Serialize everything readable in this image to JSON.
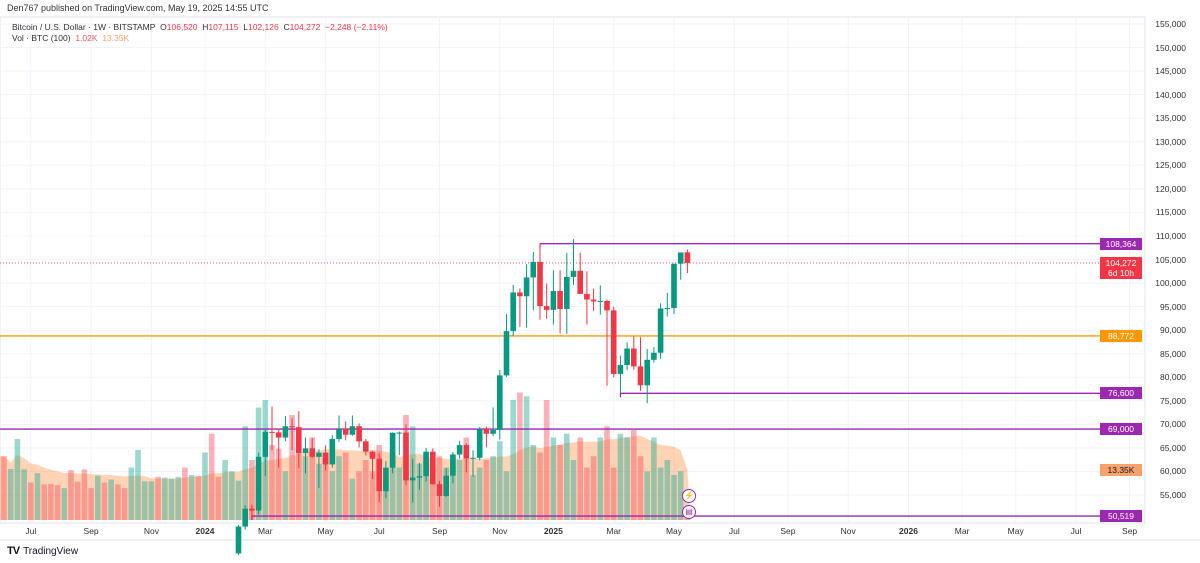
{
  "publisher_line": "Den767 published on TradingView.com, May 19, 2025 14:55 UTC",
  "legend": {
    "symbol": "Bitcoin / U.S. Dollar · 1W · BITSTAMP",
    "o_label": "O",
    "o": "106,520",
    "h_label": "H",
    "h": "107,115",
    "l_label": "L",
    "l": "102,126",
    "c_label": "C",
    "c": "104,272",
    "change": "−2,248 (−2.11%)",
    "vol_label": "Vol · BTC (100)",
    "vol": "1.02K",
    "vol_ma": "13.35K"
  },
  "price_axis": [
    "155,000",
    "150,000",
    "145,000",
    "140,000",
    "135,000",
    "130,000",
    "125,000",
    "120,000",
    "115,000",
    "110,000",
    "105,000",
    "100,000",
    "95,000",
    "90,000",
    "85,000",
    "80,000",
    "75,000",
    "70,000",
    "65,000",
    "60,000",
    "55,000"
  ],
  "badges": [
    {
      "text": "108,364",
      "price": 108364,
      "color": "#9c27b0",
      "from": "2024-12-16",
      "style": "solid"
    },
    {
      "text": "104,272",
      "sub": "6d 10h",
      "price": 104272,
      "color": "#f23645",
      "from": null,
      "style": "dotted"
    },
    {
      "text": "88,772",
      "price": 88772,
      "color": "#ff9800",
      "from": null,
      "style": "solid"
    },
    {
      "text": "76,600",
      "price": 76600,
      "color": "#9c27b0",
      "from": "2025-03-10",
      "style": "solid"
    },
    {
      "text": "69,000",
      "price": 69000,
      "color": "#9c27b0",
      "from": null,
      "style": "solid"
    },
    {
      "text": "50,519",
      "price": 50519,
      "color": "#9c27b0",
      "from": "2024-02-19",
      "style": "solid"
    }
  ],
  "volume_badge": {
    "text": "13.35K",
    "color": "#f7a26a"
  },
  "time_axis": [
    {
      "label": "Jul",
      "week": 4,
      "bold": false
    },
    {
      "label": "Sep",
      "week": 13,
      "bold": false
    },
    {
      "label": "Nov",
      "week": 22,
      "bold": false
    },
    {
      "label": "2024",
      "week": 30,
      "bold": true
    },
    {
      "label": "Mar",
      "week": 39,
      "bold": false
    },
    {
      "label": "May",
      "week": 48,
      "bold": false
    },
    {
      "label": "Jul",
      "week": 56,
      "bold": false
    },
    {
      "label": "Sep",
      "week": 65,
      "bold": false
    },
    {
      "label": "Nov",
      "week": 74,
      "bold": false
    },
    {
      "label": "2025",
      "week": 82,
      "bold": true
    },
    {
      "label": "Mar",
      "week": 91,
      "bold": false
    },
    {
      "label": "May",
      "week": 100,
      "bold": false
    },
    {
      "label": "Jul",
      "week": 109,
      "bold": false
    },
    {
      "label": "Sep",
      "week": 117,
      "bold": false
    },
    {
      "label": "Nov",
      "week": 126,
      "bold": false
    },
    {
      "label": "2026",
      "week": 135,
      "bold": true
    },
    {
      "label": "Mar",
      "week": 143,
      "bold": false
    },
    {
      "label": "May",
      "week": 151,
      "bold": false
    },
    {
      "label": "Jul",
      "week": 160,
      "bold": false
    },
    {
      "label": "Sep",
      "week": 168,
      "bold": false
    }
  ],
  "brand": "TradingView",
  "colors": {
    "up": "#089981",
    "down": "#f23645",
    "ma_area": "#ff9800",
    "level": "#9c27b0"
  },
  "chart_data": {
    "type": "candlestick",
    "interval": "1W",
    "ylim": [
      50000,
      157000
    ],
    "grid": true,
    "candles_start": "2024-02-05",
    "candles": [
      [
        42600,
        48600,
        42300,
        48300
      ],
      [
        48300,
        52800,
        47700,
        52100
      ],
      [
        52100,
        52900,
        50500,
        51700
      ],
      [
        51700,
        64000,
        50900,
        63100
      ],
      [
        63100,
        69100,
        59000,
        68400
      ],
      [
        68400,
        73800,
        64500,
        68300
      ],
      [
        68300,
        68900,
        60800,
        67200
      ],
      [
        67200,
        71800,
        66400,
        69600
      ],
      [
        69600,
        71300,
        64500,
        69400
      ],
      [
        69400,
        72800,
        60700,
        63900
      ],
      [
        63900,
        67200,
        59600,
        64900
      ],
      [
        64900,
        67100,
        62800,
        63100
      ],
      [
        63100,
        64700,
        56500,
        64000
      ],
      [
        64000,
        65500,
        60200,
        61500
      ],
      [
        61500,
        67700,
        60800,
        66900
      ],
      [
        66900,
        71900,
        66300,
        69000
      ],
      [
        69000,
        70600,
        66600,
        67800
      ],
      [
        67800,
        71900,
        67600,
        69600
      ],
      [
        69600,
        70200,
        65100,
        66400
      ],
      [
        66400,
        66900,
        63400,
        64200
      ],
      [
        64200,
        64400,
        58400,
        62700
      ],
      [
        62700,
        63800,
        53500,
        55800
      ],
      [
        55800,
        62200,
        54300,
        60800
      ],
      [
        60800,
        68300,
        59600,
        68200
      ],
      [
        68200,
        68500,
        63500,
        68250
      ],
      [
        68250,
        70000,
        57100,
        58100
      ],
      [
        58100,
        62700,
        53400,
        58700
      ],
      [
        58700,
        61800,
        56100,
        59000
      ],
      [
        59000,
        65000,
        57800,
        64200
      ],
      [
        64200,
        64900,
        57200,
        57300
      ],
      [
        57300,
        58000,
        52500,
        54800
      ],
      [
        54800,
        60700,
        54600,
        59100
      ],
      [
        59100,
        64100,
        57500,
        63600
      ],
      [
        63600,
        66500,
        62700,
        65600
      ],
      [
        65600,
        66000,
        59800,
        62800
      ],
      [
        62800,
        64500,
        58900,
        62900
      ],
      [
        62900,
        69400,
        62400,
        69000
      ],
      [
        69000,
        69500,
        65100,
        68000
      ],
      [
        68000,
        73600,
        67500,
        68800
      ],
      [
        68800,
        81500,
        66800,
        80400
      ],
      [
        80400,
        93400,
        80100,
        89800
      ],
      [
        89800,
        99600,
        88700,
        98000
      ],
      [
        98000,
        98900,
        90700,
        97200
      ],
      [
        97200,
        104000,
        90500,
        101200
      ],
      [
        101200,
        106600,
        94200,
        104500
      ],
      [
        104500,
        108364,
        92200,
        95100
      ],
      [
        95100,
        99900,
        92400,
        94300
      ],
      [
        94300,
        102700,
        91200,
        98300
      ],
      [
        98300,
        102700,
        89300,
        94500
      ],
      [
        94500,
        106400,
        89200,
        101300
      ],
      [
        101300,
        109300,
        99600,
        102600
      ],
      [
        102600,
        106500,
        97700,
        97700
      ],
      [
        97700,
        102500,
        91200,
        96500
      ],
      [
        96500,
        98800,
        94100,
        96100
      ],
      [
        96100,
        99500,
        93300,
        96200
      ],
      [
        96200,
        96500,
        78200,
        94200
      ],
      [
        94200,
        95000,
        80000,
        80700
      ],
      [
        80700,
        84600,
        76600,
        82600
      ],
      [
        82600,
        87400,
        81500,
        86100
      ],
      [
        86100,
        88700,
        81600,
        82300
      ],
      [
        82300,
        88500,
        77100,
        78300
      ],
      [
        78300,
        86000,
        74500,
        83700
      ],
      [
        83700,
        86400,
        83100,
        85200
      ],
      [
        85200,
        95700,
        83900,
        94600
      ],
      [
        94600,
        97900,
        92900,
        94700
      ],
      [
        94700,
        104100,
        93400,
        104100
      ],
      [
        104100,
        105800,
        100700,
        106500
      ],
      [
        106520,
        107115,
        102126,
        104272
      ]
    ],
    "volume_start": "2023-06-05",
    "volume_k": [
      17,
      13.6,
      21.6,
      13.5,
      10,
      12.5,
      9.5,
      9.6,
      9.3,
      8.5,
      13.3,
      10.2,
      13.5,
      8.5,
      11.8,
      10,
      10.8,
      9.5,
      8.5,
      14,
      18.7,
      10.3,
      10.3,
      11.5,
      11.3,
      11,
      11.5,
      14,
      12,
      11.7,
      18,
      23,
      11.5,
      16,
      13,
      10.5,
      25,
      16,
      30,
      32,
      20,
      19,
      13,
      28,
      18,
      17,
      22,
      15,
      18,
      13,
      17,
      18,
      11,
      13,
      16,
      13,
      20,
      12,
      19,
      14,
      28,
      25,
      15,
      16,
      11,
      17,
      14,
      17,
      16,
      22,
      12,
      14,
      16,
      17,
      21,
      13,
      32,
      34,
      33,
      20,
      18,
      32,
      22,
      20,
      23,
      16,
      22,
      14,
      17,
      22,
      25,
      14,
      23,
      22,
      24,
      17,
      13,
      22,
      14,
      16,
      12,
      13,
      1.02
    ],
    "volume_up_early": [
      0,
      1,
      1,
      1,
      0,
      1,
      0,
      0,
      0,
      1,
      0,
      0,
      0,
      0,
      1,
      0,
      1,
      0,
      0,
      1,
      1,
      1,
      1,
      0,
      1,
      1,
      1,
      0,
      1,
      0,
      1,
      0,
      0,
      1,
      1
    ]
  }
}
